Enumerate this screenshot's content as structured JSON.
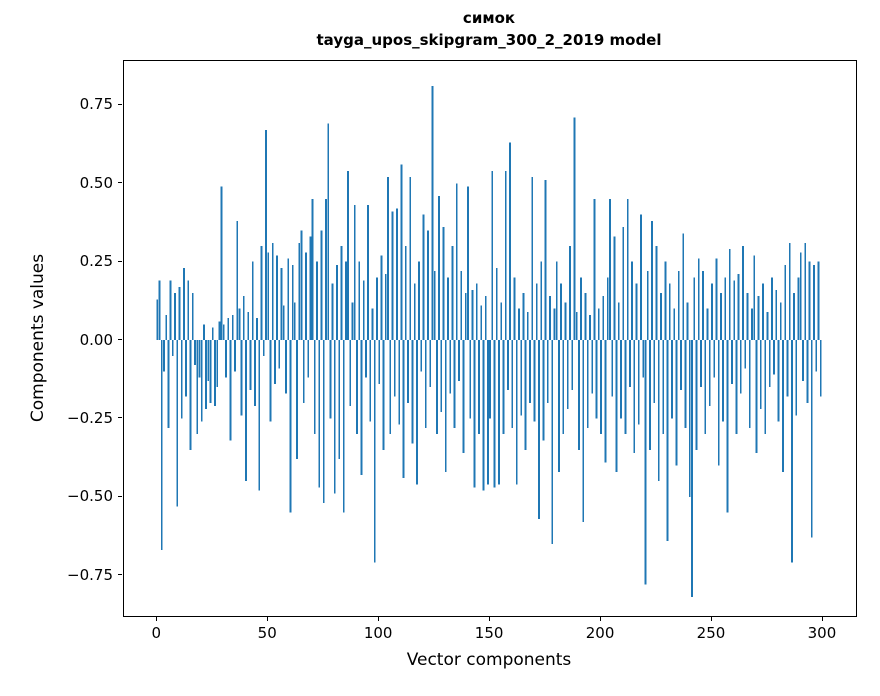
{
  "chart_data": {
    "type": "bar",
    "title": "симок",
    "subtitle": "tayga_upos_skipgram_300_2_2019 model",
    "xlabel": "Vector components",
    "ylabel": "Components values",
    "color": "#1f77b4",
    "bar_width": 0.8,
    "n_components": 300,
    "xlim": [
      -15,
      314.9
    ],
    "ylim": [
      -0.88,
      0.89
    ],
    "grid": false,
    "legend": "none",
    "xticks": [
      {
        "v": 0,
        "label": "0"
      },
      {
        "v": 50,
        "label": "50"
      },
      {
        "v": 100,
        "label": "100"
      },
      {
        "v": 150,
        "label": "150"
      },
      {
        "v": 200,
        "label": "200"
      },
      {
        "v": 250,
        "label": "250"
      },
      {
        "v": 300,
        "label": "300"
      }
    ],
    "yticks": [
      {
        "v": -0.75,
        "label": "−0.75"
      },
      {
        "v": -0.5,
        "label": "−0.50"
      },
      {
        "v": -0.25,
        "label": "−0.25"
      },
      {
        "v": 0,
        "label": "0.00"
      },
      {
        "v": 0.25,
        "label": "0.25"
      },
      {
        "v": 0.5,
        "label": "0.50"
      },
      {
        "v": 0.75,
        "label": "0.75"
      }
    ],
    "values": [
      0.13,
      0.19,
      -0.67,
      -0.1,
      0.08,
      -0.28,
      0.19,
      -0.05,
      0.15,
      -0.53,
      0.17,
      -0.25,
      0.23,
      -0.18,
      0.19,
      -0.35,
      0.15,
      -0.08,
      -0.3,
      -0.12,
      -0.26,
      0.05,
      -0.22,
      -0.13,
      -0.2,
      0.04,
      -0.21,
      -0.15,
      0.06,
      0.49,
      0.05,
      -0.12,
      0.07,
      -0.32,
      0.08,
      -0.1,
      0.38,
      0.1,
      -0.24,
      0.14,
      -0.45,
      0.09,
      -0.16,
      0.25,
      -0.21,
      0.07,
      -0.48,
      0.3,
      -0.05,
      0.67,
      0.28,
      -0.26,
      0.31,
      -0.14,
      0.27,
      -0.09,
      0.23,
      0.11,
      -0.17,
      0.26,
      -0.55,
      0.24,
      0.12,
      -0.38,
      0.31,
      0.35,
      -0.2,
      0.28,
      -0.12,
      0.33,
      0.45,
      -0.3,
      0.25,
      -0.47,
      0.35,
      -0.52,
      0.45,
      0.69,
      -0.25,
      0.18,
      -0.49,
      0.24,
      -0.38,
      0.3,
      -0.55,
      0.25,
      0.54,
      -0.21,
      0.12,
      0.43,
      -0.3,
      0.25,
      -0.43,
      0.19,
      -0.12,
      0.43,
      -0.26,
      0.1,
      -0.71,
      0.2,
      -0.14,
      0.27,
      -0.35,
      0.21,
      0.52,
      -0.3,
      0.41,
      -0.18,
      0.42,
      -0.27,
      0.56,
      -0.44,
      0.3,
      -0.2,
      0.52,
      -0.33,
      0.18,
      -0.46,
      0.25,
      -0.1,
      0.4,
      -0.28,
      0.35,
      -0.15,
      0.81,
      0.22,
      -0.3,
      0.46,
      -0.23,
      0.36,
      -0.42,
      0.2,
      -0.17,
      0.3,
      -0.28,
      0.5,
      -0.13,
      0.22,
      -0.36,
      0.15,
      0.49,
      -0.25,
      0.16,
      -0.47,
      0.18,
      -0.3,
      0.11,
      -0.48,
      0.14,
      -0.46,
      -0.25,
      0.54,
      -0.47,
      0.23,
      -0.46,
      0.12,
      -0.3,
      0.54,
      -0.16,
      0.63,
      -0.28,
      0.2,
      -0.46,
      0.1,
      -0.24,
      0.15,
      -0.35,
      0.09,
      -0.2,
      0.52,
      -0.26,
      0.18,
      -0.57,
      0.25,
      -0.32,
      0.51,
      -0.2,
      0.14,
      -0.65,
      0.1,
      0.25,
      -0.42,
      0.18,
      -0.3,
      0.12,
      -0.22,
      0.3,
      -0.16,
      0.71,
      0.09,
      -0.35,
      0.2,
      -0.58,
      0.15,
      -0.28,
      0.08,
      -0.17,
      0.45,
      -0.25,
      0.1,
      -0.3,
      0.14,
      -0.39,
      0.2,
      0.45,
      -0.18,
      0.33,
      -0.42,
      0.12,
      -0.25,
      0.36,
      -0.3,
      0.45,
      -0.15,
      0.25,
      -0.36,
      0.18,
      -0.27,
      0.4,
      -0.12,
      -0.78,
      0.22,
      -0.35,
      0.38,
      -0.2,
      0.3,
      -0.45,
      0.15,
      -0.3,
      0.25,
      -0.64,
      0.18,
      -0.25,
      0.1,
      -0.4,
      0.22,
      -0.16,
      0.34,
      -0.28,
      0.12,
      -0.5,
      -0.82,
      0.2,
      -0.35,
      0.26,
      -0.15,
      0.22,
      -0.3,
      0.1,
      -0.21,
      0.18,
      -0.12,
      0.26,
      -0.4,
      0.15,
      -0.26,
      0.2,
      -0.55,
      0.29,
      -0.14,
      0.19,
      -0.3,
      0.21,
      -0.17,
      0.3,
      -0.09,
      0.15,
      -0.28,
      0.1,
      0.27,
      -0.36,
      0.14,
      -0.22,
      0.18,
      -0.3,
      0.09,
      -0.15,
      0.2,
      -0.11,
      0.16,
      -0.26,
      0.12,
      -0.42,
      0.24,
      -0.18,
      0.31,
      -0.71,
      0.15,
      -0.24,
      0.2,
      0.28,
      -0.13,
      0.31,
      -0.2,
      0.25,
      -0.63,
      0.24,
      -0.1,
      0.25,
      -0.18
    ]
  }
}
